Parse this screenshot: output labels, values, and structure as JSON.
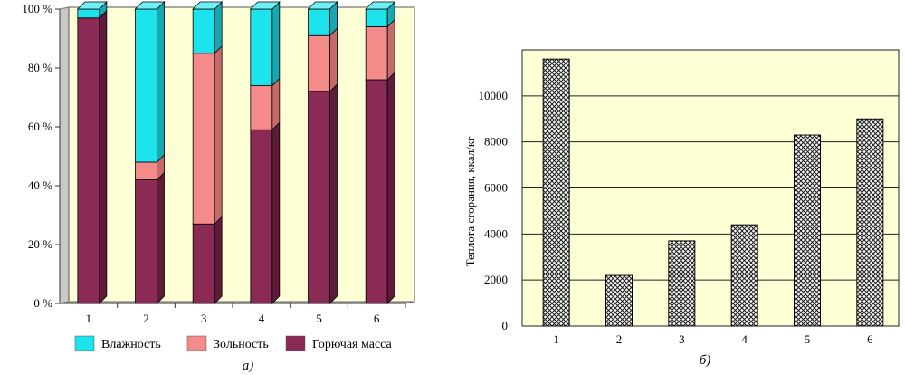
{
  "chart_data": [
    {
      "type": "bar",
      "stacked": true,
      "style": "3d",
      "categories": [
        "1",
        "2",
        "3",
        "4",
        "5",
        "6"
      ],
      "y_ticks": [
        "0 %",
        "20 %",
        "40 %",
        "60 %",
        "80 %",
        "100 %"
      ],
      "ylim": [
        0,
        100
      ],
      "series": [
        {
          "name": "Горючая масса",
          "values": [
            97,
            42,
            27,
            59,
            72,
            76
          ],
          "color": "#8b2a55",
          "top": "#9c3767",
          "side": "#5e1b3a"
        },
        {
          "name": "Зольность",
          "values": [
            0,
            6,
            58,
            15,
            19,
            18
          ],
          "color": "#f48a8a",
          "top": "#f9a3a3",
          "side": "#c56a6a"
        },
        {
          "name": "Влажность",
          "values": [
            3,
            52,
            15,
            26,
            9,
            6
          ],
          "color": "#1de3ec",
          "top": "#6ff0f5",
          "side": "#18a7b0"
        }
      ],
      "legend_position": "bottom",
      "caption": "а)",
      "plot_background": "#ffffd6",
      "floor_color": "#9c9c9c"
    },
    {
      "type": "bar",
      "categories": [
        "1",
        "2",
        "3",
        "4",
        "5",
        "6"
      ],
      "values": [
        11600,
        2200,
        3700,
        4400,
        8300,
        9000
      ],
      "y_ticks": [
        "0",
        "2000",
        "4000",
        "6000",
        "8000",
        "10000"
      ],
      "ylim": [
        0,
        12000
      ],
      "gridlines": [
        2000,
        4000,
        6000,
        8000,
        10000
      ],
      "ylabel": "Теплота сгорания, ккал/кг",
      "caption": "б)",
      "fill_pattern": "crosshatch",
      "plot_background": "#ffffd6"
    }
  ]
}
